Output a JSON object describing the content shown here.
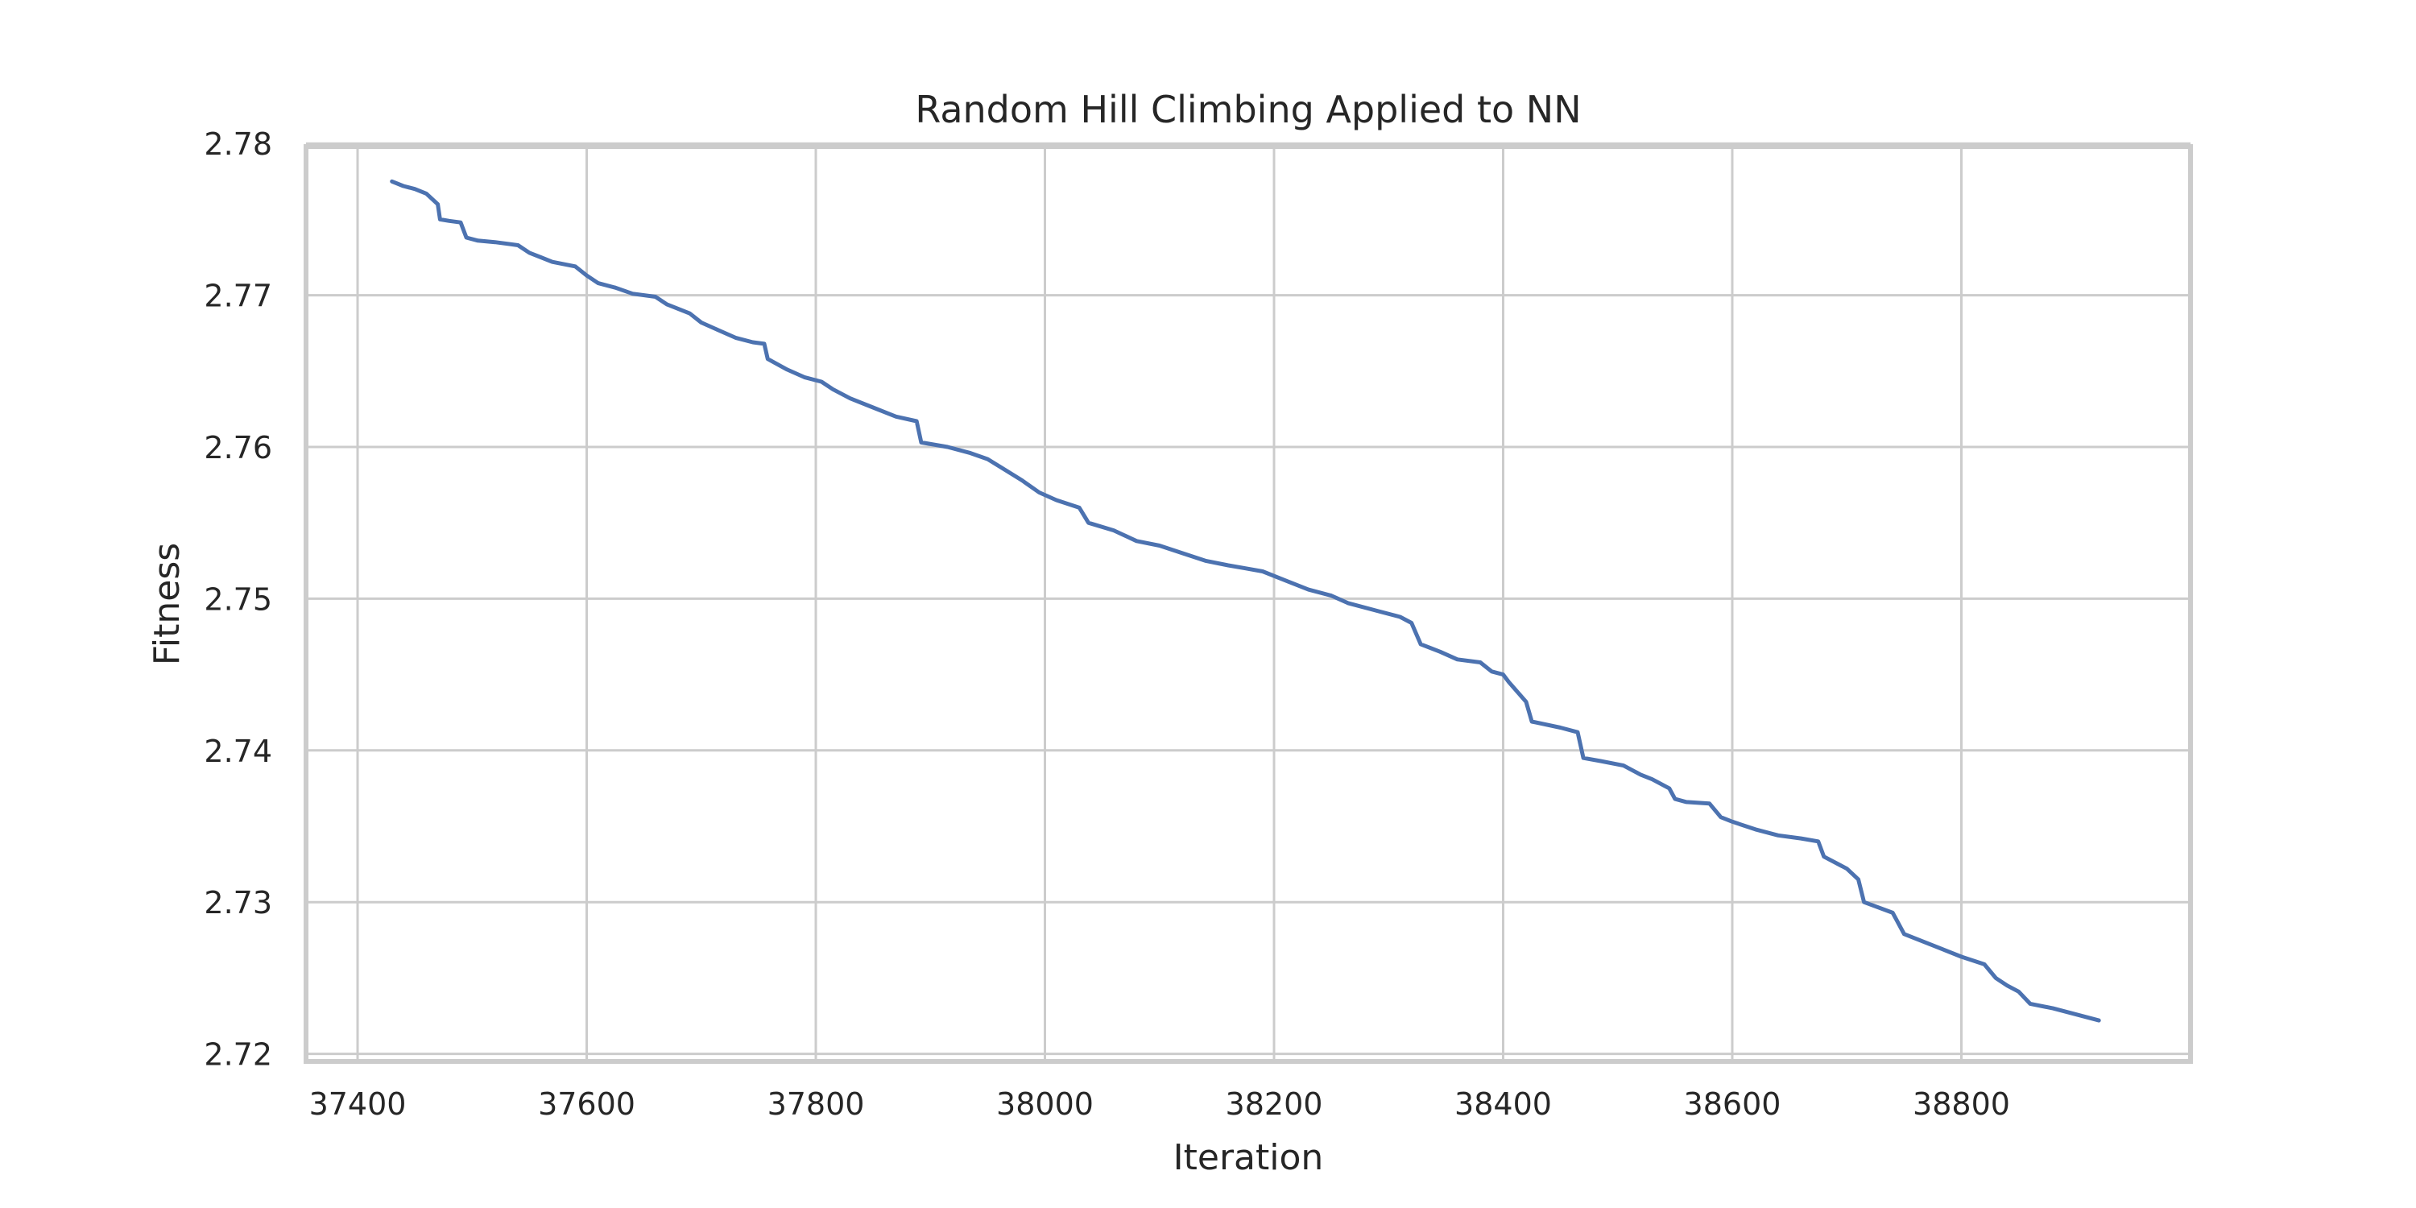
{
  "chart_data": {
    "type": "line",
    "title": "Random Hill Climbing Applied to NN",
    "xlabel": "Iteration",
    "ylabel": "Fitness",
    "xlim": [
      37355,
      39000
    ],
    "ylim": [
      2.7195,
      2.7798
    ],
    "grid": true,
    "xticks": [
      37400,
      37600,
      37800,
      38000,
      38200,
      38400,
      38600,
      38800
    ],
    "yticks": [
      2.72,
      2.73,
      2.74,
      2.75,
      2.76,
      2.77,
      2.78
    ],
    "xtick_labels": [
      "37400",
      "37600",
      "37800",
      "38000",
      "38200",
      "38400",
      "38600",
      "38800"
    ],
    "ytick_labels": [
      "2.72",
      "2.73",
      "2.74",
      "2.75",
      "2.76",
      "2.77",
      "2.78"
    ],
    "colors": {
      "line": "#4c72b0",
      "grid": "#cccccc",
      "frame": "#cccccc",
      "text": "#262626"
    },
    "series": [
      {
        "x": [
          37430,
          37440,
          37450,
          37460,
          37470,
          37472,
          37480,
          37490,
          37495,
          37505,
          37520,
          37540,
          37550,
          37560,
          37570,
          37590,
          37600,
          37610,
          37625,
          37640,
          37660,
          37670,
          37690,
          37700,
          37715,
          37730,
          37745,
          37755,
          37758,
          37775,
          37790,
          37805,
          37815,
          37830,
          37850,
          37870,
          37888,
          37892,
          37915,
          37935,
          37950,
          37965,
          37980,
          37995,
          38010,
          38030,
          38038,
          38060,
          38080,
          38100,
          38120,
          38140,
          38160,
          38175,
          38190,
          38210,
          38230,
          38250,
          38265,
          38290,
          38310,
          38320,
          38328,
          38345,
          38360,
          38380,
          38390,
          38400,
          38405,
          38420,
          38425,
          38450,
          38465,
          38470,
          38485,
          38505,
          38520,
          38530,
          38545,
          38550,
          38560,
          38580,
          38590,
          38600,
          38620,
          38640,
          38660,
          38675,
          38680,
          38700,
          38710,
          38715,
          38740,
          38750,
          38760,
          38780,
          38800,
          38820,
          38830,
          38840,
          38850,
          38860,
          38880,
          38900,
          38920
        ],
        "y": [
          2.7775,
          2.7772,
          2.777,
          2.7767,
          2.776,
          2.775,
          2.7749,
          2.7748,
          2.7738,
          2.7736,
          2.7735,
          2.7733,
          2.7728,
          2.7725,
          2.7722,
          2.7719,
          2.7713,
          2.7708,
          2.7705,
          2.7701,
          2.7699,
          2.7694,
          2.7688,
          2.7682,
          2.7677,
          2.7672,
          2.7669,
          2.7668,
          2.7658,
          2.7651,
          2.7646,
          2.7643,
          2.7638,
          2.7632,
          2.7626,
          2.762,
          2.7617,
          2.7603,
          2.76,
          2.7596,
          2.7592,
          2.7585,
          2.7578,
          2.757,
          2.7565,
          2.756,
          2.755,
          2.7545,
          2.7538,
          2.7535,
          2.753,
          2.7525,
          2.7522,
          2.752,
          2.7518,
          2.7512,
          2.7506,
          2.7502,
          2.7497,
          2.7492,
          2.7488,
          2.7484,
          2.747,
          2.7465,
          2.746,
          2.7458,
          2.7452,
          2.745,
          2.7445,
          2.7432,
          2.7419,
          2.7415,
          2.7412,
          2.7395,
          2.7393,
          2.739,
          2.7384,
          2.7381,
          2.7375,
          2.7368,
          2.7366,
          2.7365,
          2.7356,
          2.7353,
          2.7348,
          2.7344,
          2.7342,
          2.734,
          2.733,
          2.7322,
          2.7315,
          2.73,
          2.7293,
          2.7279,
          2.7276,
          2.727,
          2.7264,
          2.7259,
          2.725,
          2.7245,
          2.7241,
          2.7233,
          2.723,
          2.7226,
          2.7222
        ]
      }
    ]
  }
}
